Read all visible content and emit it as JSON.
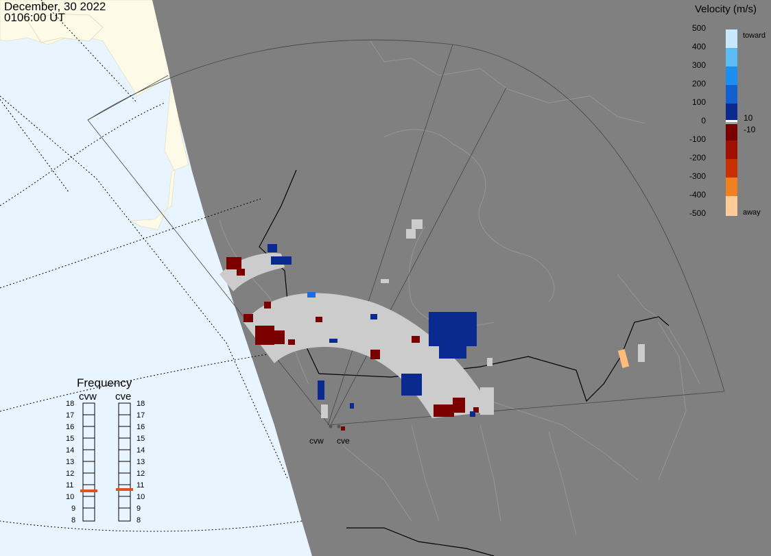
{
  "header": {
    "date": "December, 30 2022",
    "time": "0106:00 UT"
  },
  "colorbar": {
    "title": "Velocity (m/s)",
    "ticks": [
      "500",
      "400",
      "300",
      "200",
      "100",
      "0",
      "-100",
      "-200",
      "-300",
      "-400",
      "-500"
    ],
    "inner_ticks": [
      "10",
      "-10"
    ],
    "toward_label": "toward",
    "away_label": "away",
    "colors": {
      "toward": [
        "#c8e8ff",
        "#5bbcf5",
        "#1a8ff0",
        "#1060d0",
        "#0a3aa8",
        "#001a80"
      ],
      "away": [
        "#7a0000",
        "#a01000",
        "#c83000",
        "#e06010",
        "#f09040",
        "#ffcc99"
      ]
    }
  },
  "frequency": {
    "title": "Frequency",
    "radars": [
      "cvw",
      "cve"
    ],
    "values_mhz": {
      "cvw": 10.7,
      "cve": 10.9
    },
    "scale": [
      "18",
      "17",
      "16",
      "15",
      "14",
      "13",
      "12",
      "11",
      "10",
      "9",
      "8"
    ]
  },
  "radars": [
    {
      "name": "cvw"
    },
    {
      "name": "cve"
    }
  ],
  "colors": {
    "ocean": "#e8f4ff",
    "land": "#fdfbe8",
    "night": "#808080",
    "ground_scatter": "#cccccc",
    "frequency_marker": "#e05020"
  }
}
